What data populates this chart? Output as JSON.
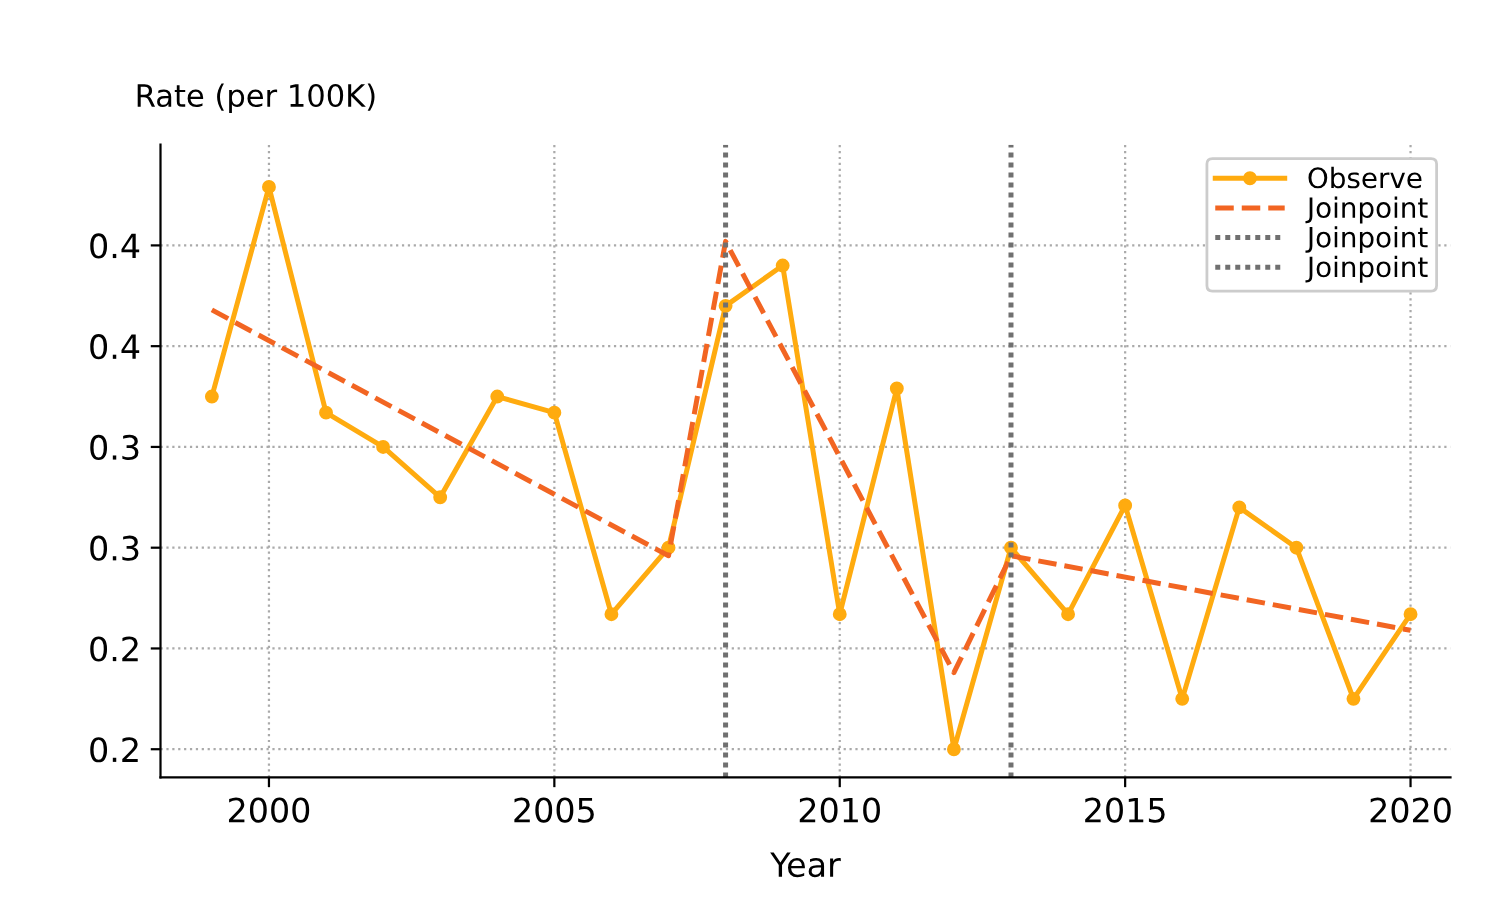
{
  "chart_data": {
    "type": "line",
    "xlabel": "Year",
    "ylabel": "Rate (per 100K)",
    "x": [
      1999,
      2000,
      2001,
      2002,
      2003,
      2004,
      2005,
      2006,
      2007,
      2008,
      2009,
      2010,
      2011,
      2012,
      2013,
      2014,
      2015,
      2016,
      2017,
      2018,
      2019,
      2020
    ],
    "series": [
      {
        "name": "Observe",
        "color": "#ffab0f",
        "marker": "circle",
        "line_style": "solid",
        "values": [
          0.375,
          0.479,
          0.367,
          0.35,
          0.325,
          0.375,
          0.367,
          0.267,
          0.3,
          0.42,
          0.44,
          0.267,
          0.379,
          0.2,
          0.3,
          0.267,
          0.321,
          0.225,
          0.32,
          0.3,
          0.225,
          0.267
        ]
      },
      {
        "name": "Joinpoint",
        "color": "#f26522",
        "marker": "none",
        "line_style": "dashed",
        "x": [
          1999,
          2007,
          2008,
          2012,
          2013,
          2020
        ],
        "values": [
          0.418,
          0.296,
          0.452,
          0.238,
          0.296,
          0.259
        ]
      },
      {
        "name": "Joinpoint",
        "color": "#707070",
        "marker": "none",
        "line_style": "dotted",
        "x": [
          2008,
          2008
        ],
        "values": [
          0.186,
          0.5
        ]
      },
      {
        "name": "Joinpoint",
        "color": "#707070",
        "marker": "none",
        "line_style": "dotted",
        "x": [
          2013,
          2013
        ],
        "values": [
          0.186,
          0.5
        ]
      }
    ],
    "xlim": [
      1998.1,
      2020.7
    ],
    "xticks": [
      2000,
      2005,
      2010,
      2015,
      2020
    ],
    "ylim": [
      0.186,
      0.5
    ],
    "yticks": [
      {
        "value": 0.2,
        "label": "0.2"
      },
      {
        "value": 0.25,
        "label": "0.2"
      },
      {
        "value": 0.3,
        "label": "0.3"
      },
      {
        "value": 0.35,
        "label": "0.3"
      },
      {
        "value": 0.4,
        "label": "0.4"
      },
      {
        "value": 0.45,
        "label": "0.4"
      }
    ],
    "grid": true,
    "legend": "top right"
  }
}
